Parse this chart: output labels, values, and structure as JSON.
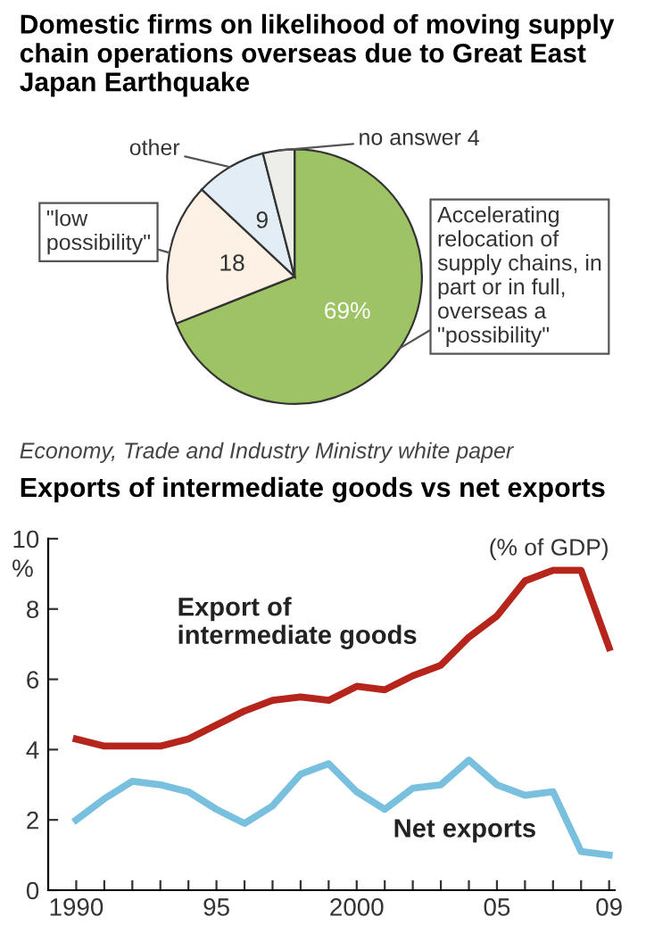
{
  "chart_data": [
    {
      "type": "pie",
      "title": "Domestic firms on likelihood of moving supply chain operations overseas due to Great East Japan Earthquake",
      "categories": [
        "Accelerating relocation of supply chains, in part or in full, overseas a \"possibility\"",
        "\"low possibility\"",
        "other",
        "no answer"
      ],
      "values": [
        69,
        18,
        9,
        4
      ],
      "colors": [
        "#9dc365",
        "#fdf0e4",
        "#e3edf5",
        "#ededea"
      ],
      "value_labels": [
        "69%",
        "18",
        "9",
        "4"
      ],
      "annotations": [
        "Economy, Trade and Industry Ministry white paper"
      ]
    },
    {
      "type": "line",
      "title": "Exports of intermediate goods vs net exports",
      "subtitle": "(% of GDP)",
      "ylabel": "%",
      "x": [
        1990,
        1991,
        1992,
        1993,
        1994,
        1995,
        1996,
        1997,
        1998,
        1999,
        2000,
        2001,
        2002,
        2003,
        2004,
        2005,
        2006,
        2007,
        2008,
        2009
      ],
      "series": [
        {
          "name": "Export of intermediate goods",
          "color": "#b5251b",
          "values": [
            4.3,
            4.1,
            4.1,
            4.1,
            4.3,
            4.7,
            5.1,
            5.4,
            5.5,
            5.4,
            5.8,
            5.7,
            6.1,
            6.4,
            7.2,
            7.8,
            8.8,
            9.1,
            9.1,
            6.9
          ]
        },
        {
          "name": "Net exports",
          "color": "#78c0dd",
          "values": [
            2.0,
            2.6,
            3.1,
            3.0,
            2.8,
            2.3,
            1.9,
            2.4,
            3.3,
            3.6,
            2.8,
            2.3,
            2.9,
            3.0,
            3.7,
            3.0,
            2.7,
            2.8,
            1.1,
            1.0
          ]
        }
      ],
      "xlim": [
        1989,
        2009.2
      ],
      "ylim": [
        0,
        10
      ],
      "xticks": [
        1990,
        {
          "value": 1991,
          "label": null
        },
        {
          "value": 1992,
          "label": null
        },
        {
          "value": 1993,
          "label": null
        },
        {
          "value": 1994,
          "label": null
        },
        {
          "value": 1995,
          "label": "95"
        },
        {
          "value": 1996,
          "label": null
        },
        {
          "value": 1997,
          "label": null
        },
        {
          "value": 1998,
          "label": null
        },
        {
          "value": 1999,
          "label": null
        },
        2000,
        {
          "value": 2001,
          "label": null
        },
        {
          "value": 2002,
          "label": null
        },
        {
          "value": 2003,
          "label": null
        },
        {
          "value": 2004,
          "label": null
        },
        {
          "value": 2005,
          "label": "05"
        },
        {
          "value": 2006,
          "label": null
        },
        {
          "value": 2007,
          "label": null
        },
        {
          "value": 2008,
          "label": null
        },
        {
          "value": 2009,
          "label": "09"
        }
      ],
      "yticks": [
        0,
        2,
        4,
        6,
        8,
        10
      ],
      "grid": false,
      "legend": false,
      "marker": "none",
      "line_style": "solid"
    }
  ]
}
